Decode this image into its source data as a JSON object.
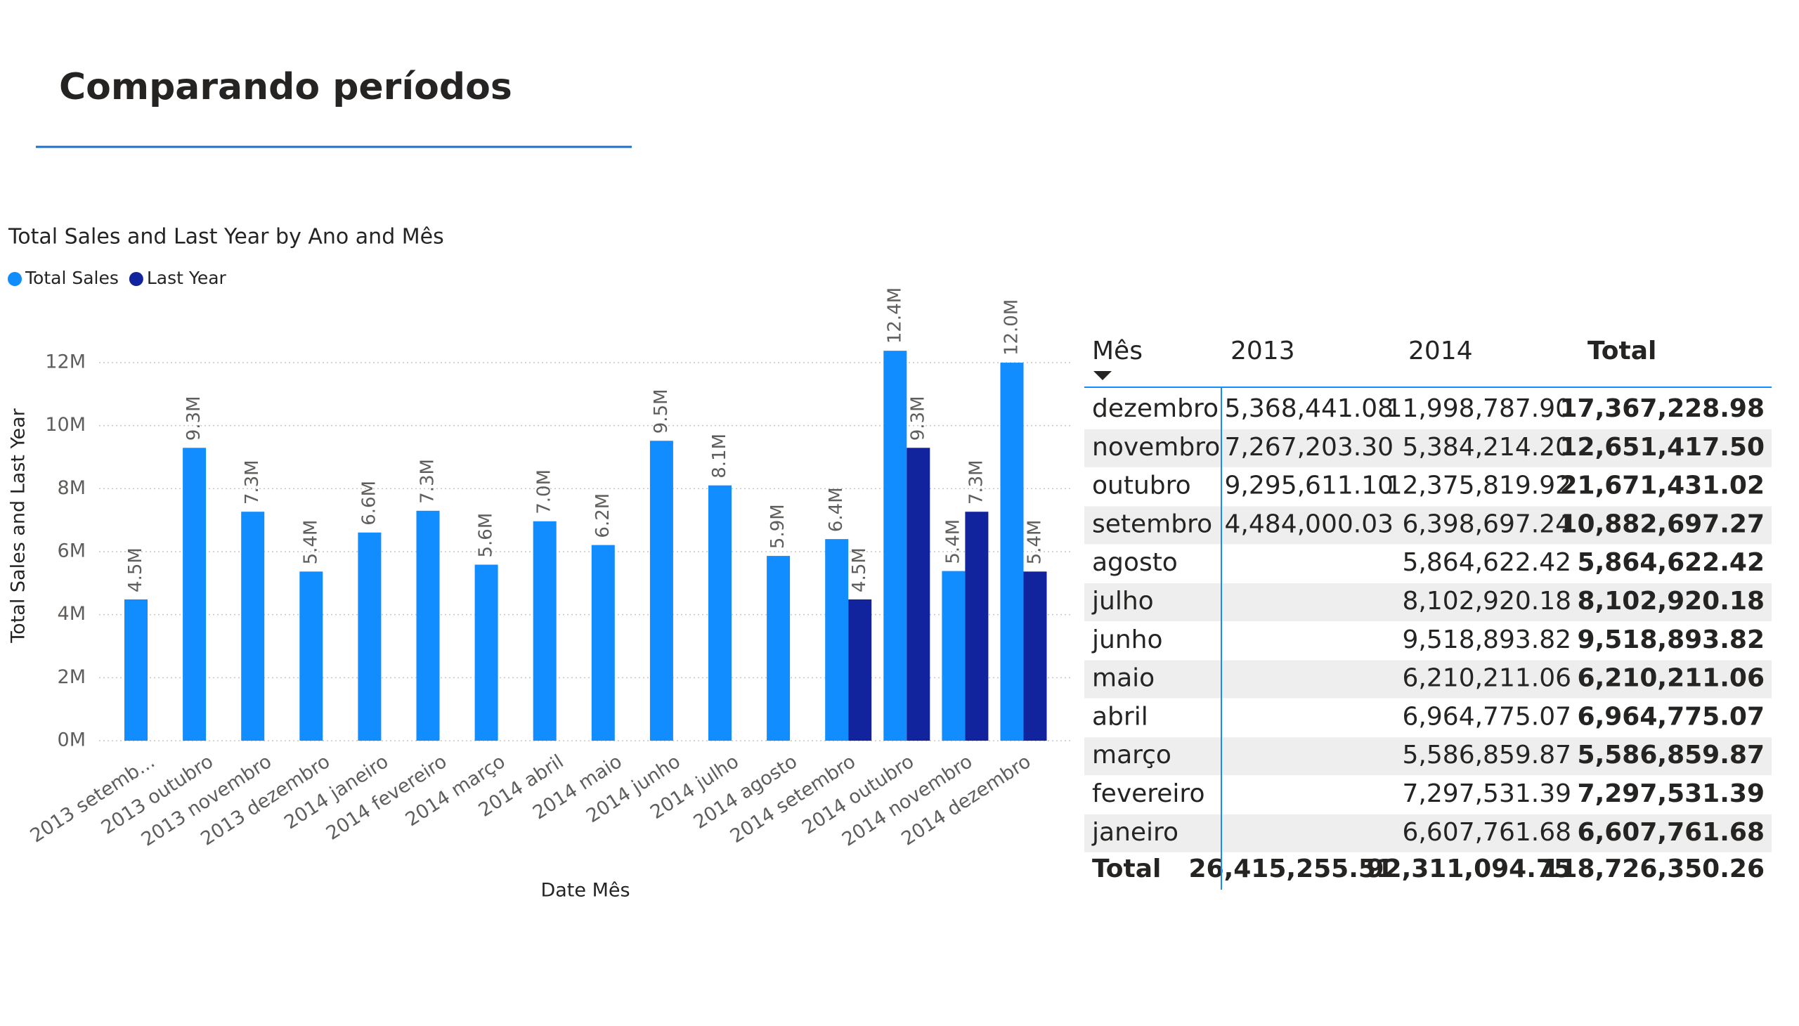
{
  "header": {
    "title": "Comparando períodos"
  },
  "chart_data": {
    "type": "bar",
    "title": "Total Sales and Last Year by Ano and Mês",
    "x_label": "Date Mês",
    "y_label": "Total Sales and Last Year",
    "categories": [
      "2013 setemb...",
      "2013 outubro",
      "2013 novembro",
      "2013 dezembro",
      "2014 janeiro",
      "2014 fevereiro",
      "2014 março",
      "2014 abril",
      "2014 maio",
      "2014 junho",
      "2014 julho",
      "2014 agosto",
      "2014 setembro",
      "2014 outubro",
      "2014 novembro",
      "2014 dezembro"
    ],
    "series": [
      {
        "name": "Total Sales",
        "color": "#118dff",
        "values": [
          4.484,
          9.2956,
          7.2672,
          5.3684,
          6.6078,
          7.2975,
          5.5869,
          6.9648,
          6.2102,
          9.5189,
          8.1029,
          5.8646,
          6.3987,
          12.3758,
          5.3842,
          11.9988
        ],
        "value_labels": [
          "4.5M",
          "9.3M",
          "7.3M",
          "5.4M",
          "6.6M",
          "7.3M",
          "5.6M",
          "7.0M",
          "6.2M",
          "9.5M",
          "8.1M",
          "5.9M",
          "6.4M",
          "12.4M",
          "5.4M",
          "12.0M"
        ]
      },
      {
        "name": "Last Year",
        "color": "#12239e",
        "values": [
          null,
          null,
          null,
          null,
          null,
          null,
          null,
          null,
          null,
          null,
          null,
          null,
          4.484,
          9.2956,
          7.2672,
          5.3684
        ],
        "value_labels": [
          null,
          null,
          null,
          null,
          null,
          null,
          null,
          null,
          null,
          null,
          null,
          null,
          "4.5M",
          "9.3M",
          "7.3M",
          "5.4M"
        ]
      }
    ],
    "ylim": [
      0,
      12.6
    ],
    "yticks": [
      {
        "value": 0,
        "label": "0M"
      },
      {
        "value": 2,
        "label": "2M"
      },
      {
        "value": 4,
        "label": "4M"
      },
      {
        "value": 6,
        "label": "6M"
      },
      {
        "value": 8,
        "label": "8M"
      },
      {
        "value": 10,
        "label": "10M"
      },
      {
        "value": 12,
        "label": "12M"
      }
    ],
    "grid": true,
    "legend": "top-left"
  },
  "table": {
    "columns": [
      "Mês",
      "2013",
      "2014",
      "Total"
    ],
    "rows": [
      [
        "dezembro",
        "5,368,441.08",
        "11,998,787.90",
        "17,367,228.98"
      ],
      [
        "novembro",
        "7,267,203.30",
        "5,384,214.20",
        "12,651,417.50"
      ],
      [
        "outubro",
        "9,295,611.10",
        "12,375,819.92",
        "21,671,431.02"
      ],
      [
        "setembro",
        "4,484,000.03",
        "6,398,697.24",
        "10,882,697.27"
      ],
      [
        "agosto",
        null,
        "5,864,622.42",
        "5,864,622.42"
      ],
      [
        "julho",
        null,
        "8,102,920.18",
        "8,102,920.18"
      ],
      [
        "junho",
        null,
        "9,518,893.82",
        "9,518,893.82"
      ],
      [
        "maio",
        null,
        "6,210,211.06",
        "6,210,211.06"
      ],
      [
        "abril",
        null,
        "6,964,775.07",
        "6,964,775.07"
      ],
      [
        "março",
        null,
        "5,586,859.87",
        "5,586,859.87"
      ],
      [
        "fevereiro",
        null,
        "7,297,531.39",
        "7,297,531.39"
      ],
      [
        "janeiro",
        null,
        "6,607,761.68",
        "6,607,761.68"
      ]
    ],
    "total": [
      "Total",
      "26,415,255.51",
      "92,311,094.75",
      "118,726,350.26"
    ]
  }
}
